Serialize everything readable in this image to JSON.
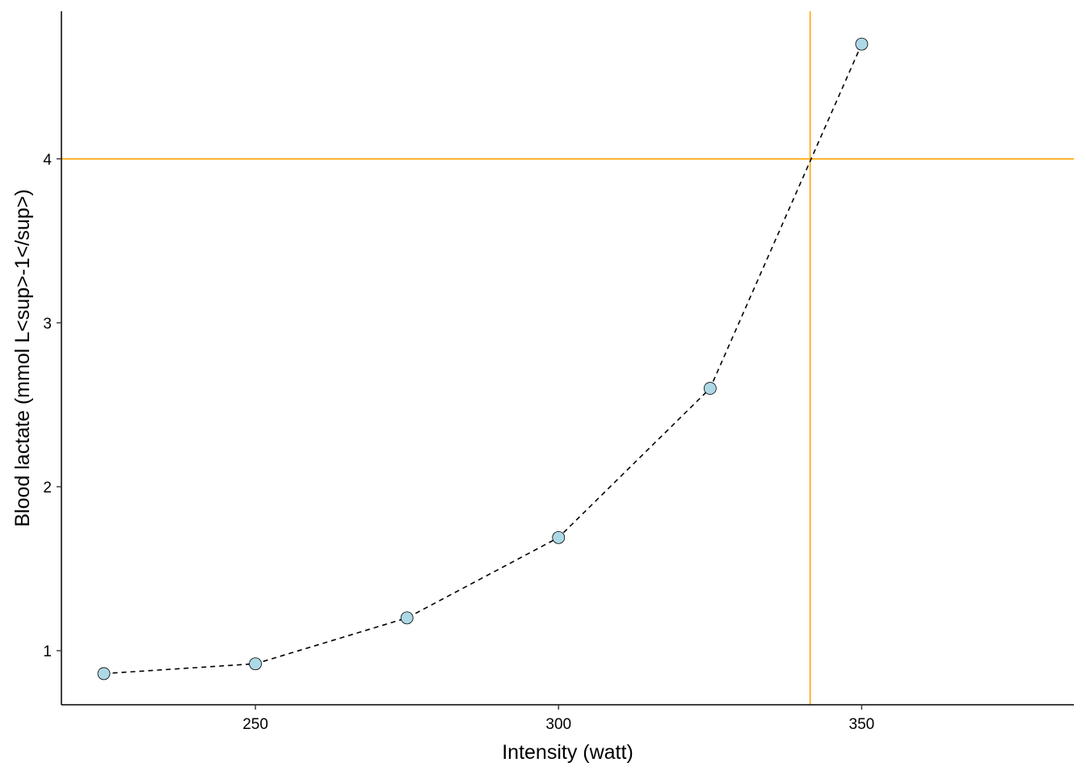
{
  "chart_data": {
    "type": "line",
    "title": "",
    "xlabel": "Intensity (watt)",
    "ylabel": "Blood lactate (mmol L<sup>-1</sup>)",
    "xlim": [
      218,
      385
    ],
    "ylim": [
      0.67,
      4.9
    ],
    "x_ticks": [
      250,
      300,
      350
    ],
    "y_ticks": [
      1,
      2,
      3,
      4
    ],
    "grid": false,
    "legend": "none",
    "series": [
      {
        "x": [
          225,
          250,
          275,
          300,
          325,
          350
        ],
        "y": [
          0.86,
          0.92,
          1.2,
          1.69,
          2.6,
          4.7
        ],
        "line_style": "dashed",
        "line_color": "#000000",
        "marker_fill": "#add8e6",
        "marker_edge": "#000000"
      }
    ],
    "reference_lines": [
      {
        "orientation": "horizontal",
        "value": 4,
        "color": "#ffa500"
      },
      {
        "orientation": "vertical",
        "value": 341.5,
        "color": "#ffa500"
      }
    ]
  }
}
